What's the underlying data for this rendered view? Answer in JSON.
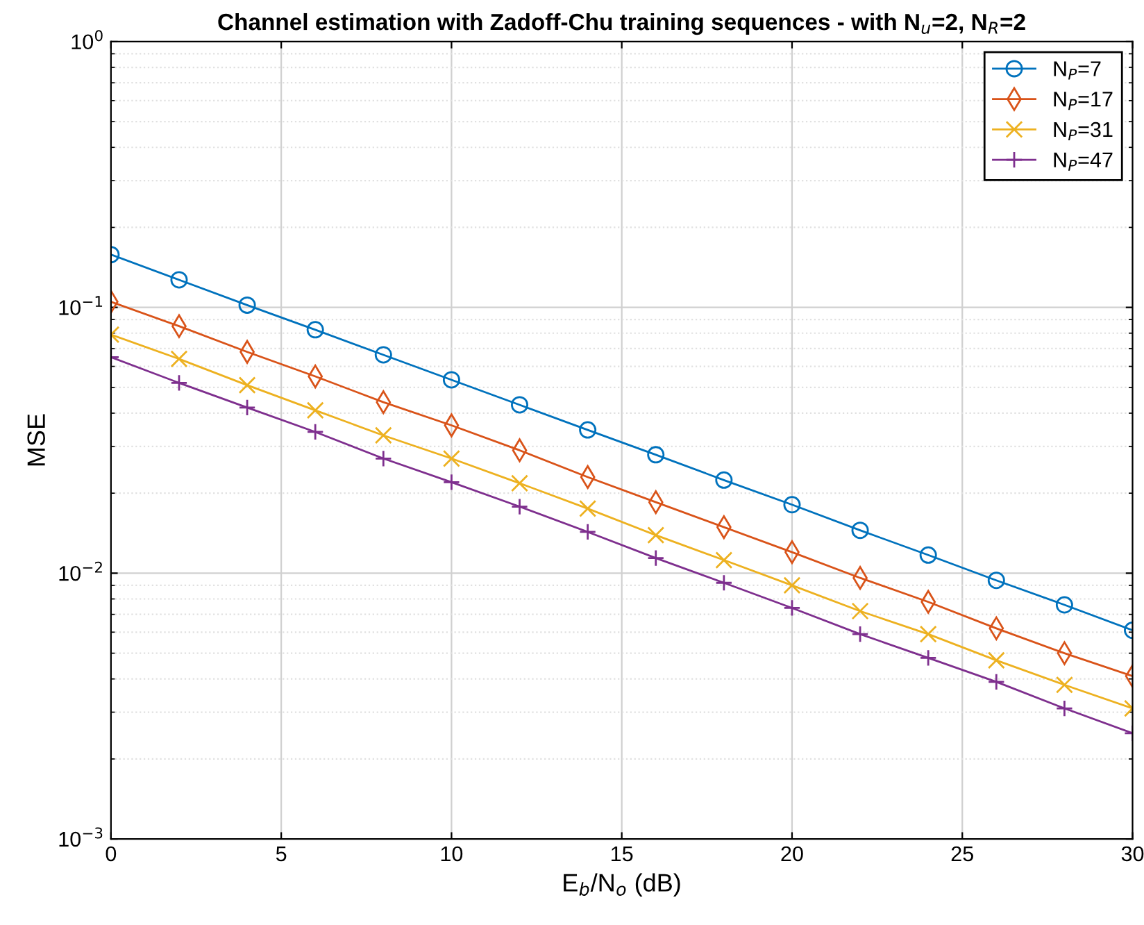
{
  "chart_data": {
    "type": "line",
    "title": "Channel estimation with Zadoff-Chu training sequences - with N$_{u}$=2, N$_{R}$=2",
    "xlabel": "E$_{b}$/N$_{o}$ (dB)",
    "ylabel": "MSE",
    "x": [
      0,
      2,
      4,
      6,
      8,
      10,
      12,
      14,
      16,
      18,
      20,
      22,
      24,
      26,
      28,
      30
    ],
    "series": [
      {
        "name": "N$_{P}$=7",
        "color": "#0072bd",
        "marker": "circle",
        "values": [
          0.158,
          0.127,
          0.102,
          0.0824,
          0.0663,
          0.0534,
          0.043,
          0.0346,
          0.0279,
          0.0224,
          0.0181,
          0.0145,
          0.0117,
          0.0094,
          0.0076,
          0.0061
        ]
      },
      {
        "name": "N$_{P}$=17",
        "color": "#d95319",
        "marker": "diamond",
        "values": [
          0.105,
          0.085,
          0.068,
          0.055,
          0.044,
          0.036,
          0.029,
          0.023,
          0.0185,
          0.0149,
          0.012,
          0.0096,
          0.0078,
          0.0062,
          0.005,
          0.0041
        ]
      },
      {
        "name": "N$_{P}$=31",
        "color": "#edb120",
        "marker": "cross",
        "values": [
          0.079,
          0.064,
          0.051,
          0.041,
          0.033,
          0.027,
          0.0218,
          0.0175,
          0.0139,
          0.0112,
          0.009,
          0.0072,
          0.0059,
          0.0047,
          0.0038,
          0.0031
        ]
      },
      {
        "name": "N$_{P}$=47",
        "color": "#7e2f8e",
        "marker": "plus",
        "values": [
          0.065,
          0.052,
          0.042,
          0.034,
          0.027,
          0.022,
          0.0178,
          0.0143,
          0.0114,
          0.0092,
          0.0074,
          0.0059,
          0.0048,
          0.0039,
          0.0031,
          0.0025
        ]
      }
    ],
    "log": "y",
    "xlim": [
      0,
      30
    ],
    "xticks": [
      0,
      5,
      10,
      15,
      20,
      25,
      30
    ],
    "ylim": [
      0.001,
      1
    ],
    "yticks": [
      {
        "value": 0.001,
        "label": "10$^{−3}$"
      },
      {
        "value": 0.01,
        "label": "10$^{−2}$"
      },
      {
        "value": 0.1,
        "label": "10$^{−1}$"
      },
      {
        "value": 1,
        "label": "10$^{0}$"
      }
    ],
    "grid": true,
    "legend": "top right",
    "line_style": "solid"
  }
}
